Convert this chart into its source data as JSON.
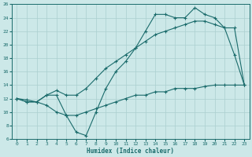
{
  "xlabel": "Humidex (Indice chaleur)",
  "background_color": "#cce8e8",
  "grid_color": "#aacfcf",
  "line_color": "#1a6b6b",
  "xlim": [
    -0.5,
    23.5
  ],
  "ylim": [
    6,
    26
  ],
  "xticks": [
    0,
    1,
    2,
    3,
    4,
    5,
    6,
    7,
    8,
    9,
    10,
    11,
    12,
    13,
    14,
    15,
    16,
    17,
    18,
    19,
    20,
    21,
    22,
    23
  ],
  "yticks": [
    6,
    8,
    10,
    12,
    14,
    16,
    18,
    20,
    22,
    24,
    26
  ],
  "series1_x": [
    0,
    1,
    2,
    3,
    4,
    5,
    6,
    7,
    8,
    9,
    10,
    11,
    12,
    13,
    14,
    15,
    16,
    17,
    18,
    19,
    20,
    21,
    22,
    23
  ],
  "series1_y": [
    12,
    11.5,
    11.5,
    12.5,
    12.5,
    9.5,
    7,
    6.5,
    10,
    13.5,
    16,
    17.5,
    19.5,
    22,
    24.5,
    24.5,
    24,
    24,
    25.5,
    24.5,
    24,
    22.5,
    18.5,
    14
  ],
  "series2_x": [
    0,
    1,
    2,
    3,
    4,
    5,
    6,
    7,
    8,
    9,
    10,
    11,
    12,
    13,
    14,
    15,
    16,
    17,
    18,
    19,
    20,
    21,
    22,
    23
  ],
  "series2_y": [
    12,
    11.8,
    11.5,
    12.5,
    13.2,
    12.5,
    12.5,
    13.5,
    15,
    16.5,
    17.5,
    18.5,
    19.5,
    20.5,
    21.5,
    22,
    22.5,
    23,
    23.5,
    23.5,
    23,
    22.5,
    22.5,
    14
  ],
  "series3_x": [
    0,
    1,
    2,
    3,
    4,
    5,
    6,
    7,
    8,
    9,
    10,
    11,
    12,
    13,
    14,
    15,
    16,
    17,
    18,
    19,
    20,
    21,
    22,
    23
  ],
  "series3_y": [
    12,
    11.5,
    11.5,
    11,
    10,
    9.5,
    9.5,
    10,
    10.5,
    11,
    11.5,
    12,
    12.5,
    12.5,
    13,
    13,
    13.5,
    13.5,
    13.5,
    13.8,
    14,
    14,
    14,
    14
  ]
}
